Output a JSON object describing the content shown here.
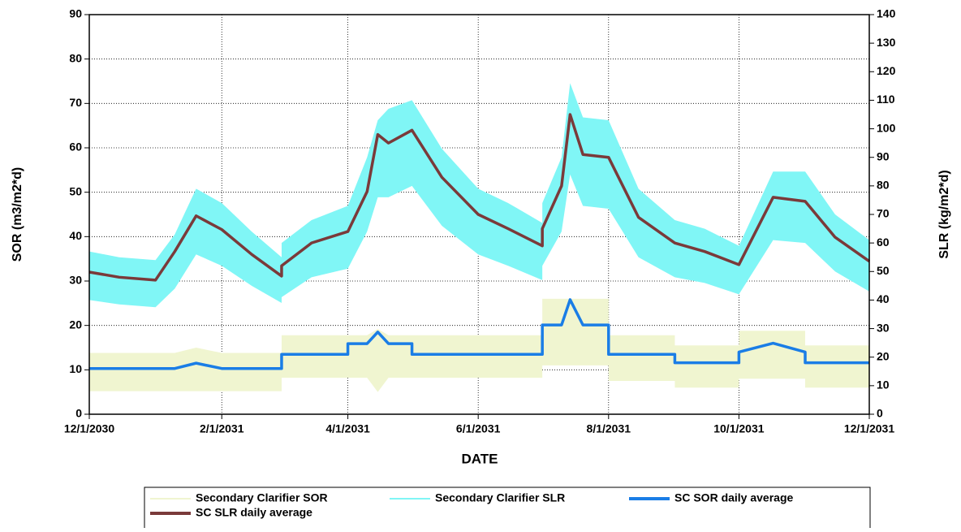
{
  "chart_data": {
    "type": "line",
    "x_title": "DATE",
    "y_title": "SOR (m3/m2*d)",
    "y2_title": "SLR (kg/m2*d)",
    "xlim": [
      "12/1/2030",
      "12/1/2031"
    ],
    "xticks": [
      "12/1/2030",
      "2/1/2031",
      "4/1/2031",
      "6/1/2031",
      "8/1/2031",
      "10/1/2031",
      "12/1/2031"
    ],
    "ylim": [
      0,
      90
    ],
    "yticks": [
      0,
      10,
      20,
      30,
      40,
      50,
      60,
      70,
      80,
      90
    ],
    "y2lim": [
      0,
      140
    ],
    "y2ticks": [
      0,
      10,
      20,
      30,
      40,
      50,
      60,
      70,
      80,
      90,
      100,
      110,
      120,
      130,
      140
    ],
    "grid": true,
    "legend": "bottom",
    "x": [
      "12/1/2030",
      "12/15/2030",
      "1/1/2031",
      "1/10/2031",
      "1/20/2031",
      "2/1/2031",
      "2/15/2031",
      "3/1/2031",
      "3/1/2031",
      "3/15/2031",
      "4/1/2031",
      "4/1/2031",
      "4/10/2031",
      "4/15/2031",
      "4/20/2031",
      "5/1/2031",
      "5/1/2031",
      "5/15/2031",
      "6/1/2031",
      "6/15/2031",
      "7/1/2031",
      "7/1/2031",
      "7/10/2031",
      "7/14/2031",
      "7/20/2031",
      "8/1/2031",
      "8/1/2031",
      "8/15/2031",
      "9/1/2031",
      "9/1/2031",
      "9/15/2031",
      "10/1/2031",
      "10/1/2031",
      "10/17/2031",
      "11/1/2031",
      "11/1/2031",
      "11/15/2031",
      "12/1/2031"
    ],
    "series": [
      {
        "name": "Secondary Clarifier SOR",
        "color": "#f0f5d0",
        "high": [
          13.8,
          13.8,
          13.8,
          13.8,
          15,
          13.8,
          13.8,
          13.8,
          17.8,
          17.8,
          17.8,
          17.8,
          17.8,
          19.2,
          17.8,
          17.8,
          17.8,
          17.8,
          17.8,
          17.8,
          17.8,
          26,
          26,
          26,
          26,
          26,
          17.8,
          17.8,
          17.8,
          15.5,
          15.5,
          15.5,
          18.8,
          18.8,
          18.8,
          15.5,
          15.5,
          15.5
        ],
        "low": [
          5.2,
          5.2,
          5.2,
          5.2,
          5.2,
          5.2,
          5.2,
          5.2,
          8.2,
          8.2,
          8.2,
          8.2,
          8.2,
          5,
          8.2,
          8.2,
          8.2,
          8.2,
          8.2,
          8.2,
          8.2,
          11,
          11,
          11,
          11,
          11,
          7.5,
          7.5,
          7.5,
          6,
          6,
          6,
          8,
          8,
          8,
          6,
          6,
          6
        ]
      },
      {
        "name": "Secondary Clarifier SLR",
        "color": "#80f6f6",
        "axis": "y2",
        "high": [
          57,
          55,
          54,
          63,
          79,
          74,
          64,
          55,
          60,
          68,
          73,
          73,
          90,
          103,
          107,
          110,
          110,
          93,
          79,
          74,
          67,
          74,
          90,
          116,
          104,
          103,
          103,
          79,
          68,
          68,
          65,
          59,
          59,
          85,
          85,
          85,
          70,
          61
        ],
        "low": [
          40,
          38.5,
          37.5,
          44,
          56,
          52,
          45,
          39,
          41,
          48,
          51,
          51,
          64,
          76,
          76,
          80,
          80,
          66,
          56,
          52,
          47,
          52,
          64,
          84,
          73,
          72,
          72,
          55,
          48,
          48,
          46,
          42,
          42,
          61,
          60,
          60,
          50,
          43
        ]
      },
      {
        "name": "SC SOR daily average",
        "color": "#1a7de6",
        "values": [
          10.3,
          10.3,
          10.3,
          10.3,
          11.5,
          10.3,
          10.3,
          10.3,
          13.5,
          13.5,
          13.5,
          15.9,
          15.9,
          18.5,
          15.9,
          15.9,
          13.5,
          13.5,
          13.5,
          13.5,
          13.5,
          20.1,
          20.1,
          25.8,
          20.1,
          20.1,
          13.5,
          13.5,
          13.5,
          11.6,
          11.6,
          11.6,
          14,
          16,
          14,
          11.6,
          11.6,
          11.6
        ]
      },
      {
        "name": "SC SLR daily average",
        "color": "#7a3a3a",
        "axis": "y2",
        "values": [
          49.8,
          48,
          47,
          57,
          69.5,
          64.7,
          56,
          48.4,
          52,
          60,
          64,
          64,
          78,
          98,
          95,
          99.5,
          99.5,
          83,
          70,
          65,
          59,
          65,
          80,
          105,
          91,
          90,
          90,
          69,
          60,
          60,
          57,
          52.4,
          52.4,
          76,
          74.6,
          74.6,
          62,
          53.6
        ]
      }
    ]
  }
}
